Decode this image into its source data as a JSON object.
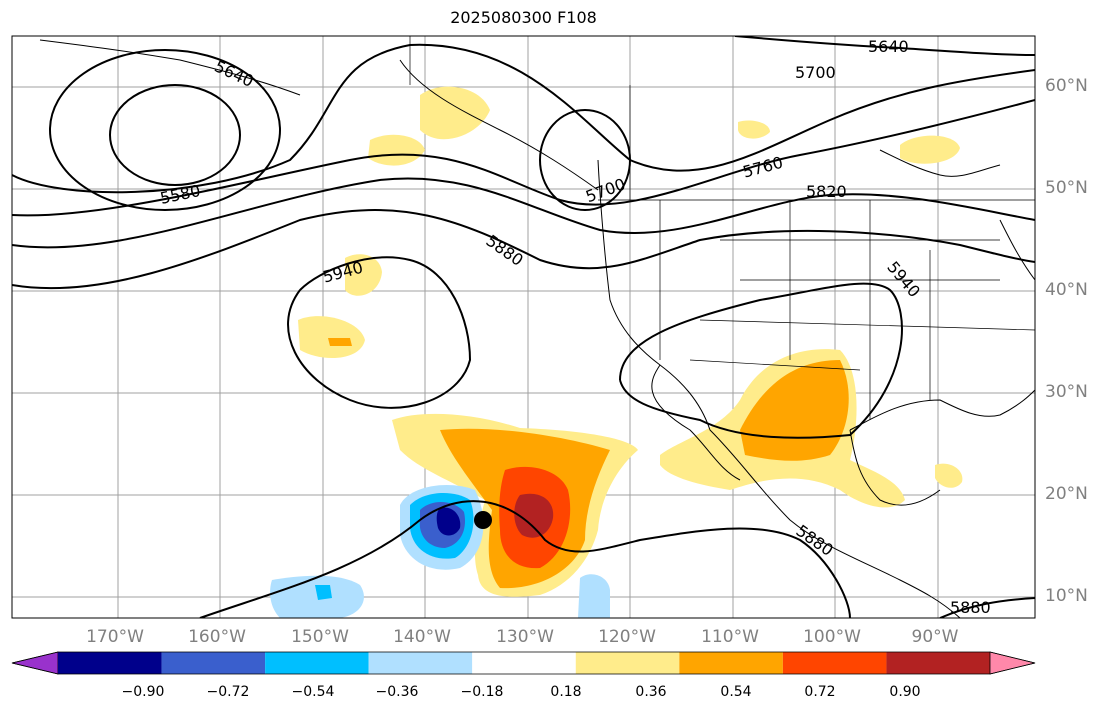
{
  "title": "2025080300 F108",
  "lat_labels": [
    "60°N",
    "50°N",
    "40°N",
    "30°N",
    "20°N",
    "10°N"
  ],
  "lon_labels": [
    "170°W",
    "160°W",
    "150°W",
    "140°W",
    "130°W",
    "120°W",
    "110°W",
    "100°W",
    "90°W"
  ],
  "contour_labels": [
    "5640",
    "5640",
    "5700",
    "5700",
    "5760",
    "5580",
    "5820",
    "5880",
    "5940",
    "5940",
    "5880",
    "5880"
  ],
  "colorbar": {
    "ticks": [
      "−0.90",
      "−0.72",
      "−0.54",
      "−0.36",
      "−0.18",
      "0.18",
      "0.36",
      "0.54",
      "0.72",
      "0.90"
    ],
    "colors": [
      "#9932cc",
      "#00008b",
      "#3a5fcd",
      "#00bfff",
      "#b0e0ff",
      "#ffffff",
      "#ffec8b",
      "#ffa500",
      "#ff4500",
      "#b22222",
      "#ff88aa"
    ]
  }
}
